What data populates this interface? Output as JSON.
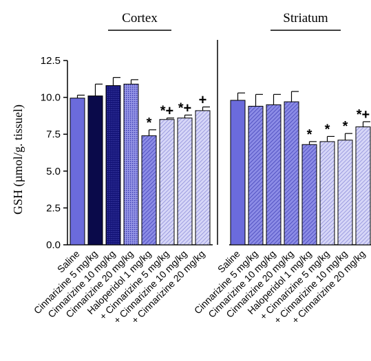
{
  "colors": {
    "solid_blue": "#6b6bdc",
    "navy": "#0a0a4a",
    "navy_mid": "#141478",
    "light_blue": "#8c8ce6",
    "pale_blue": "#c3c3f3",
    "hatch_line": "#3c3cb4"
  },
  "chart_data": {
    "type": "bar",
    "ylabel": "GSH (µmol/g. tissuel)",
    "ylim": [
      0,
      12.5
    ],
    "yticks": [
      "0.0",
      "2.5",
      "5.0",
      "7.5",
      "10.0",
      "12.5"
    ],
    "grid": false,
    "groups": [
      {
        "title": "Cortex",
        "categories": [
          "Saline",
          "Cinnarizine 5 mg/kg",
          "Cinnarizine 10 mg/kg",
          "Cinnarizine 20 mg/kg",
          "Haloperidol 1 mg/kg",
          "+ Cinnarizine 5 mg/kg",
          "+ Cinnarizine 10 mg/kg",
          "+ Cinnarizine 20 mg/kg"
        ],
        "values": [
          9.95,
          10.1,
          10.8,
          10.9,
          7.4,
          8.5,
          8.6,
          9.1
        ],
        "errors": [
          0.2,
          0.8,
          0.55,
          0.3,
          0.4,
          0.1,
          0.2,
          0.25
        ],
        "markers": [
          "",
          "",
          "",
          "",
          "*",
          "*+",
          "*+",
          "+"
        ],
        "styles": [
          "solid",
          "navy",
          "navy-dots",
          "dots",
          "hatch",
          "hatch-light",
          "hatch-light",
          "hatch-light"
        ]
      },
      {
        "title": "Striatum",
        "categories": [
          "Saline",
          "Cinnarizine 5 mg/kg",
          "Cinnarizine 10 mg/kg",
          "Cinnarizine 20 mg/kg",
          "Haloperidol 1 mg/kg",
          "+ Cinnarizine 5 mg/kg",
          "+ Cinnarizine 10 mg/kg",
          "+ Cinnarizine 20 mg/kg"
        ],
        "values": [
          9.8,
          9.4,
          9.5,
          9.7,
          6.8,
          7.0,
          7.1,
          8.0
        ],
        "errors": [
          0.5,
          0.8,
          0.7,
          0.7,
          0.2,
          0.35,
          0.45,
          0.35
        ],
        "markers": [
          "",
          "",
          "",
          "",
          "*",
          "*",
          "*",
          "*+"
        ],
        "styles": [
          "solid",
          "hatch",
          "hatch",
          "hatch",
          "hatch",
          "hatch-light",
          "hatch-light",
          "hatch-light"
        ]
      }
    ]
  }
}
